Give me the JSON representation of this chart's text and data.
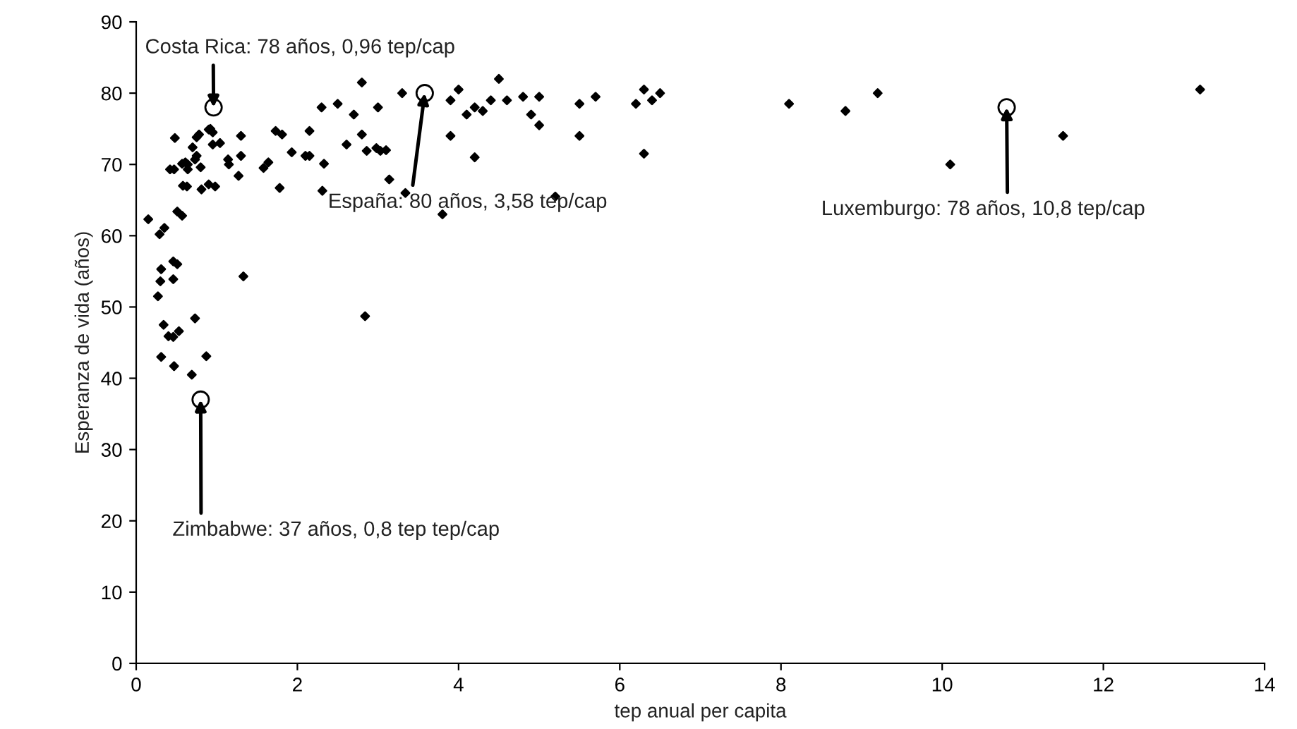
{
  "chart_data": {
    "type": "scatter",
    "xlabel": "tep anual per capita",
    "ylabel": "Esperanza de vida (años)",
    "xlim": [
      0,
      14
    ],
    "xticks": [
      0,
      2,
      4,
      6,
      8,
      10,
      12,
      14
    ],
    "ylim": [
      0,
      90
    ],
    "yticks": [
      0,
      10,
      20,
      30,
      40,
      50,
      60,
      70,
      80,
      90
    ],
    "grid": false,
    "legend": false,
    "series": [
      {
        "color": "#000000",
        "marker": "diamond",
        "x": [
          0.15,
          0.29,
          0.35,
          0.57,
          0.51,
          0.31,
          0.46,
          0.51,
          0.3,
          0.46,
          0.27,
          0.34,
          0.4,
          0.46,
          0.53,
          0.73,
          0.31,
          0.47,
          0.69,
          0.87,
          1.33,
          2.84,
          0.48,
          0.42,
          0.47,
          0.57,
          0.61,
          0.64,
          0.73,
          0.75,
          0.7,
          0.64,
          0.58,
          0.63,
          0.81,
          0.9,
          0.98,
          0.8,
          0.75,
          0.78,
          0.9,
          0.95,
          0.95,
          1.04,
          1.14,
          1.15,
          1.3,
          1.3,
          1.27,
          1.58,
          1.64,
          1.73,
          1.81,
          1.78,
          1.93,
          2.1,
          2.15,
          2.15,
          2.33,
          2.31,
          2.61,
          2.7,
          2.8,
          2.86,
          2.98,
          3.03,
          3.14,
          3.34,
          2.3,
          2.5,
          2.8,
          3.0,
          3.3,
          3.9,
          4.0,
          4.1,
          4.2,
          4.3,
          4.4,
          4.5,
          4.6,
          4.8,
          4.9,
          5.0,
          5.0,
          3.9,
          4.2,
          3.8,
          5.2,
          5.5,
          5.5,
          5.7,
          6.2,
          6.3,
          6.3,
          6.4,
          6.5,
          8.1,
          8.8,
          9.2,
          10.1,
          10.8,
          11.5,
          13.2,
          3.1,
          0.92
        ],
        "values": [
          62.3,
          60.2,
          61.1,
          62.8,
          63.4,
          55.3,
          56.4,
          56.0,
          53.6,
          53.9,
          51.5,
          47.5,
          45.9,
          45.8,
          46.6,
          48.4,
          43.0,
          41.7,
          40.5,
          43.1,
          54.3,
          48.7,
          73.7,
          69.3,
          69.3,
          70.1,
          70.3,
          70.0,
          70.7,
          71.2,
          72.4,
          69.3,
          67.0,
          66.9,
          66.5,
          67.2,
          66.9,
          69.6,
          73.8,
          74.2,
          74.9,
          74.5,
          72.8,
          73.0,
          70.7,
          70.0,
          74.0,
          71.2,
          68.4,
          69.5,
          70.3,
          74.7,
          74.2,
          66.7,
          71.7,
          71.2,
          71.2,
          74.7,
          70.1,
          66.3,
          72.8,
          77.0,
          74.2,
          71.9,
          72.3,
          71.9,
          67.9,
          66.0,
          78,
          78.5,
          81.5,
          78,
          80,
          79,
          80.5,
          77,
          78,
          77.5,
          79,
          82,
          79,
          79.5,
          77,
          79.5,
          75.5,
          74,
          71,
          63,
          65.5,
          74,
          78.5,
          79.5,
          78.5,
          80.5,
          71.5,
          79,
          80,
          78.5,
          77.5,
          80,
          70,
          77,
          74,
          80.5,
          72,
          75
        ]
      },
      {
        "color": "#000000",
        "marker": "circle",
        "x": [
          0.96,
          3.58,
          10.8,
          0.8
        ],
        "values": [
          78,
          80,
          78,
          37
        ]
      }
    ],
    "annotations": [
      {
        "text": "Costa Rica: 78 años, 0,96 tep/cap",
        "x": 0.96,
        "y": 78
      },
      {
        "text": "España: 80 años, 3,58 tep/cap",
        "x": 3.58,
        "y": 80
      },
      {
        "text": "Luxemburgo: 78 años, 10,8 tep/cap",
        "x": 10.8,
        "y": 78
      },
      {
        "text": "Zimbabwe: 37 años, 0,8 tep tep/cap",
        "x": 0.8,
        "y": 37
      }
    ]
  }
}
